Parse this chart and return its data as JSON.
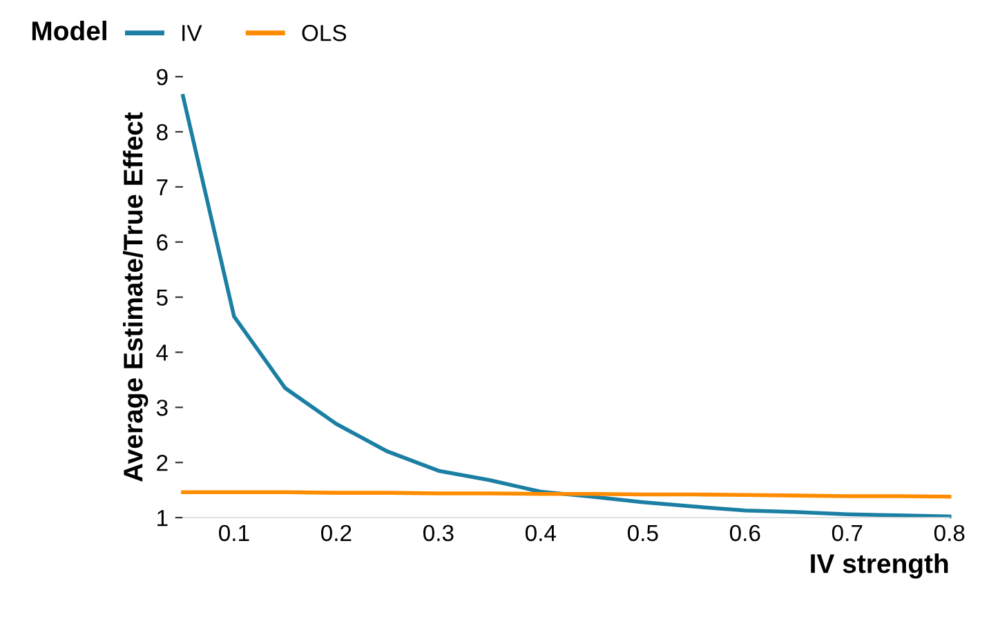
{
  "chart_data": {
    "type": "line",
    "xlabel": "IV strength",
    "ylabel": "Average Estimate/True Effect",
    "legend_title": "Model",
    "legend": "top left",
    "x": [
      0.05,
      0.1,
      0.15,
      0.2,
      0.25,
      0.3,
      0.35,
      0.4,
      0.45,
      0.5,
      0.55,
      0.6,
      0.65,
      0.7,
      0.75,
      0.8
    ],
    "series": [
      {
        "name": "IV",
        "color": "#1b7fa3",
        "values": [
          8.65,
          4.65,
          3.35,
          2.7,
          2.2,
          1.85,
          1.68,
          1.47,
          1.38,
          1.28,
          1.2,
          1.13,
          1.1,
          1.06,
          1.04,
          1.02
        ]
      },
      {
        "name": "OLS",
        "color": "#ff8c00",
        "values": [
          1.46,
          1.46,
          1.46,
          1.45,
          1.45,
          1.44,
          1.44,
          1.43,
          1.43,
          1.42,
          1.42,
          1.41,
          1.4,
          1.39,
          1.39,
          1.38
        ]
      }
    ],
    "xlim": [
      0.05,
      0.8
    ],
    "ylim": [
      1,
      9
    ],
    "xticks": [
      0.1,
      0.2,
      0.3,
      0.4,
      0.5,
      0.6,
      0.7,
      0.8
    ],
    "yticks": [
      1,
      2,
      3,
      4,
      5,
      6,
      7,
      8,
      9
    ],
    "grid": false,
    "marker": "none",
    "line_style": "solid"
  }
}
